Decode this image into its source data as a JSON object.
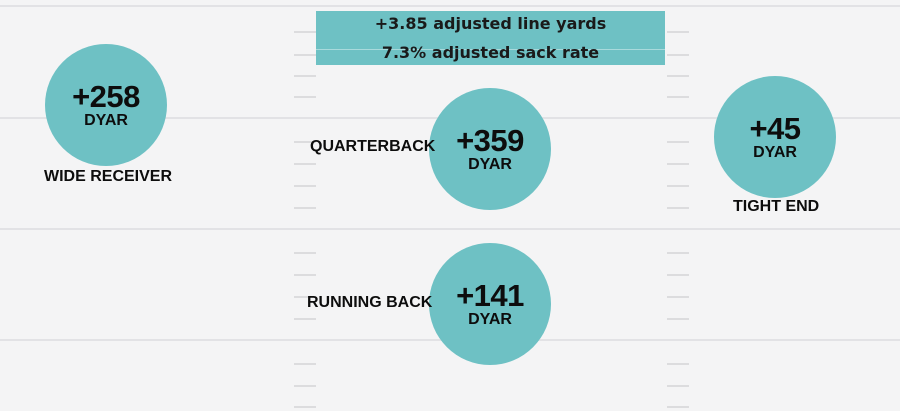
{
  "offensive_line": {
    "stat_1": "+3.85 adjusted line yards",
    "stat_2": "7.3% adjusted sack rate"
  },
  "positions": [
    {
      "value": "+258",
      "unit": "DYAR",
      "label": "WIDE RECEIVER"
    },
    {
      "value": "+359",
      "unit": "DYAR",
      "label": "QUARTERBACK"
    },
    {
      "value": "+45",
      "unit": "DYAR",
      "label": "TIGHT END"
    },
    {
      "value": "+141",
      "unit": "DYAR",
      "label": "RUNNING BACK"
    }
  ],
  "colors": {
    "background": "#f4f4f5",
    "accent": "#6ec1c4",
    "text": "#0d0d0d",
    "field_lines": "#e2e2e5"
  }
}
